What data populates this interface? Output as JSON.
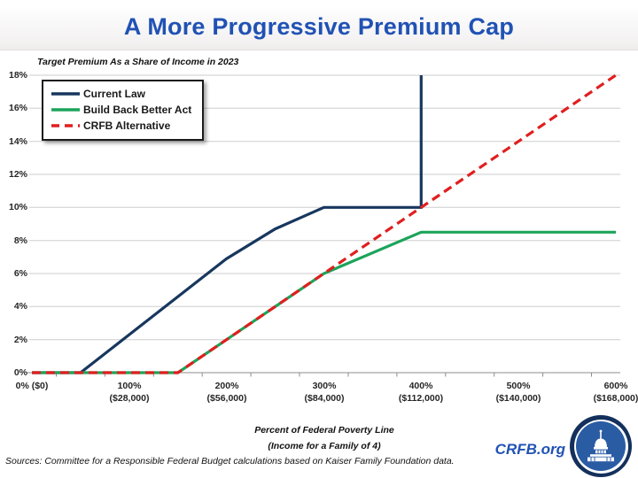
{
  "header": {
    "title": "A More Progressive Premium Cap"
  },
  "chart_data": {
    "type": "line",
    "subtitle": "Target Premium As a Share of Income in 2023",
    "xlabel_line1": "Percent of Federal Poverty Line",
    "xlabel_line2": "(Income for a Family of 4)",
    "ylabel": "",
    "xlim": [
      0,
      600
    ],
    "ylim": [
      0,
      18
    ],
    "grid": "horizontal",
    "legend_position": "top-left",
    "y_ticks": [
      {
        "value": 0,
        "label": "0%"
      },
      {
        "value": 2,
        "label": "2%"
      },
      {
        "value": 4,
        "label": "4%"
      },
      {
        "value": 6,
        "label": "6%"
      },
      {
        "value": 8,
        "label": "8%"
      },
      {
        "value": 10,
        "label": "10%"
      },
      {
        "value": 12,
        "label": "12%"
      },
      {
        "value": 14,
        "label": "14%"
      },
      {
        "value": 16,
        "label": "16%"
      },
      {
        "value": 18,
        "label": "18%"
      }
    ],
    "x_ticks": [
      {
        "value": 0,
        "line1": "0% ($0)",
        "line2": ""
      },
      {
        "value": 100,
        "line1": "100%",
        "line2": "($28,000)"
      },
      {
        "value": 200,
        "line1": "200%",
        "line2": "($56,000)"
      },
      {
        "value": 300,
        "line1": "300%",
        "line2": "($84,000)"
      },
      {
        "value": 400,
        "line1": "400%",
        "line2": "($112,000)"
      },
      {
        "value": 500,
        "line1": "500%",
        "line2": "($140,000)"
      },
      {
        "value": 600,
        "line1": "600%",
        "line2": "($168,000)"
      }
    ],
    "x_minor_tick_interval": 50,
    "series": [
      {
        "name": "Current Law",
        "color": "#17375e",
        "dash": null,
        "points": [
          [
            0,
            0
          ],
          [
            50,
            0
          ],
          [
            200,
            6.9
          ],
          [
            250,
            8.7
          ],
          [
            300,
            10
          ],
          [
            400,
            10
          ],
          [
            400,
            18
          ]
        ]
      },
      {
        "name": "Build Back Better Act",
        "color": "#1ca45a",
        "dash": null,
        "points": [
          [
            0,
            0
          ],
          [
            150,
            0
          ],
          [
            300,
            6
          ],
          [
            400,
            8.5
          ],
          [
            600,
            8.5
          ]
        ]
      },
      {
        "name": "CRFB Alternative",
        "color": "#e01f1f",
        "dash": "10,6",
        "points": [
          [
            0,
            0
          ],
          [
            150,
            0
          ],
          [
            300,
            6
          ],
          [
            400,
            10
          ],
          [
            600,
            18
          ]
        ]
      }
    ]
  },
  "footer": {
    "sources": "Sources: Committee for a Responsible Federal Budget calculations based on Kaiser Family Foundation data.",
    "site": "CRFB.org"
  },
  "colors": {
    "title_blue": "#2052b4",
    "gridline": "#cdcdcd",
    "axis": "#8c8c8c",
    "tick_text": "#262626",
    "logo_outer_navy": "#14305c",
    "logo_inner_blue": "#2a5ca4"
  }
}
